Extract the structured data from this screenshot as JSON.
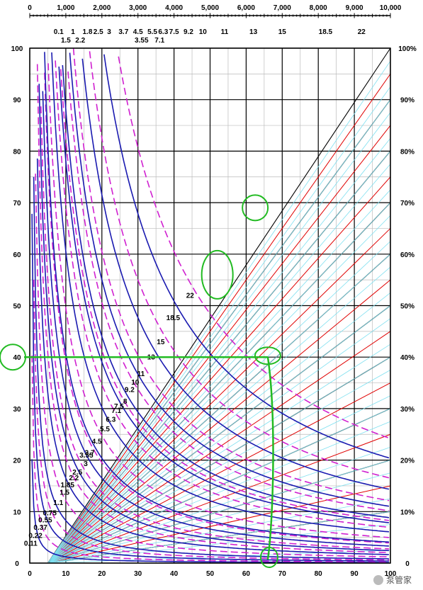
{
  "chart_data": {
    "type": "line",
    "title": "",
    "xlabel": "",
    "ylabel": "",
    "xlim": [
      0,
      100
    ],
    "ylim": [
      0,
      100
    ],
    "x_ticks": [
      0,
      10,
      20,
      30,
      40,
      50,
      60,
      70,
      80,
      90,
      100
    ],
    "y_ticks": [
      0,
      10,
      20,
      30,
      40,
      50,
      60,
      70,
      80,
      90,
      100
    ],
    "top_axis_ticks": [
      "0",
      "1,000",
      "2,000",
      "3,000",
      "4,000",
      "5,000",
      "6,000",
      "7,000",
      "8,000",
      "9,000",
      "10,000"
    ],
    "right_axis_ticks": [
      "0",
      "10%",
      "20%",
      "30%",
      "40%",
      "50%",
      "60%",
      "70%",
      "80%",
      "90%",
      "100%"
    ],
    "power_curves": [
      0.11,
      0.22,
      0.37,
      0.55,
      0.75,
      1.1,
      1.5,
      1.85,
      2.2,
      2.5,
      3,
      3.55,
      3.7,
      4.5,
      5.5,
      6.3,
      7.1,
      7.5,
      8,
      9.2,
      10,
      11,
      13,
      15,
      18.5,
      22
    ],
    "power_curve_labels": [
      "0.11",
      "0.22",
      "0.37",
      "0.55",
      "0.75",
      "1.1",
      "1.5",
      "1.85",
      "2.2",
      "2.5",
      "3",
      "3.55",
      "3.7",
      "4.5",
      "5.5",
      "6.3",
      "7.1",
      "7.5",
      "8",
      "9.2",
      "10",
      "11",
      "13",
      "15",
      "18.5",
      "22"
    ],
    "top_labels": [
      "0.1",
      "1",
      "1.8",
      "2.5",
      "3",
      "3.7",
      "4.5",
      "5.5",
      "6.3",
      "7.5",
      "9.2",
      "10",
      "11",
      "13",
      "15",
      "18.5",
      "22",
      "1.5",
      "2.2",
      "3.55",
      "7.1"
    ],
    "efficiency_lines_pct": [
      10,
      20,
      30,
      40,
      50,
      60,
      70,
      80,
      90,
      100
    ],
    "highlight": {
      "y": 40,
      "x": 66
    },
    "watermark": "泵管家",
    "colors": {
      "solid_curve": "#1a1ab0",
      "dashed_curve": "#d020d0",
      "black_ray": "#000000",
      "red_ray": "#e00000",
      "cyan_ray": "#7fe0f0",
      "grid_major": "#000000",
      "grid_minor": "#bbbbbb",
      "annotation": "#22bb22"
    }
  }
}
